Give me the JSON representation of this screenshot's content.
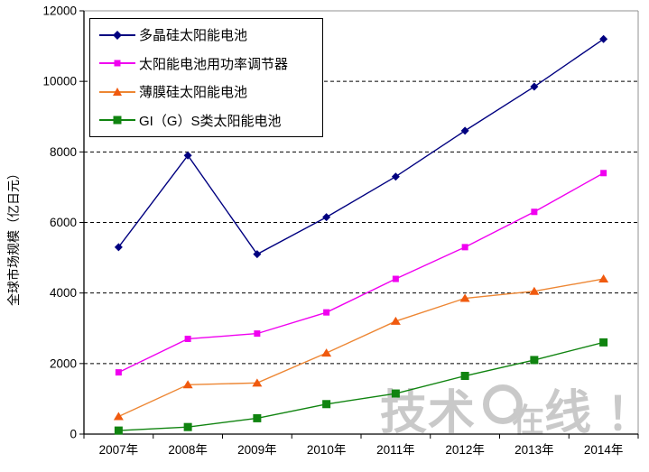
{
  "chart_data": {
    "type": "line",
    "title": "",
    "xlabel": "",
    "ylabel": "全球市场规模（亿日元）",
    "ylim": [
      0,
      12000
    ],
    "y_ticks": [
      0,
      2000,
      4000,
      6000,
      8000,
      10000,
      12000
    ],
    "y_tick_labels": [
      "0",
      "2000",
      "4000",
      "6000",
      "8000",
      "10000",
      "12000"
    ],
    "categories": [
      "2007年",
      "2008年",
      "2009年",
      "2010年",
      "2011年",
      "2012年",
      "2013年",
      "2014年"
    ],
    "grid": "horizontal-dashed",
    "legend_position": "top-left-inside",
    "series": [
      {
        "name": "多晶硅太阳能电池",
        "marker": "diamond",
        "line_color": "#000080",
        "marker_color": "#000080",
        "values": [
          5300,
          7900,
          5100,
          6150,
          7300,
          8600,
          9850,
          11200
        ]
      },
      {
        "name": "太阳能电池用功率调节器",
        "marker": "square",
        "line_color": "#F000F0",
        "marker_color": "#F000F0",
        "values": [
          1750,
          2700,
          2850,
          3450,
          4400,
          5300,
          6300,
          7400
        ]
      },
      {
        "name": "薄膜硅太阳能电池",
        "marker": "triangle",
        "line_color": "#ED8633",
        "marker_color": "#F05A0F",
        "values": [
          500,
          1400,
          1450,
          2300,
          3200,
          3850,
          4050,
          4400
        ]
      },
      {
        "name": "GI（G）S类太阳能电池",
        "marker": "square-lg",
        "line_color": "#108410",
        "marker_color": "#108410",
        "values": [
          100,
          200,
          450,
          850,
          1150,
          1650,
          2100,
          2600
        ]
      }
    ]
  },
  "watermark": {
    "text": "技术在线！",
    "part1": "技术",
    "part2": "在",
    "part3": "线",
    "exclaim": "！"
  }
}
